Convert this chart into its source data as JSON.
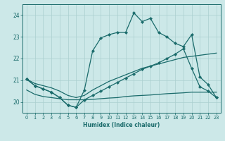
{
  "xlabel": "Humidex (Indice chaleur)",
  "bg_color": "#cce8e8",
  "line_color": "#1a6b6b",
  "grid_color": "#aacfcf",
  "xlim": [
    -0.5,
    23.5
  ],
  "ylim": [
    19.5,
    24.5
  ],
  "yticks": [
    20,
    21,
    22,
    23,
    24
  ],
  "xticks": [
    0,
    1,
    2,
    3,
    4,
    5,
    6,
    7,
    8,
    9,
    10,
    11,
    12,
    13,
    14,
    15,
    16,
    17,
    18,
    19,
    20,
    21,
    22,
    23
  ],
  "series": [
    {
      "x": [
        0,
        1,
        2,
        3,
        4,
        5,
        6,
        7,
        8,
        9,
        10,
        11,
        12,
        13,
        14,
        15,
        16,
        17,
        18,
        19,
        20,
        21,
        22,
        23
      ],
      "y": [
        20.55,
        20.35,
        20.25,
        20.2,
        20.15,
        20.1,
        20.1,
        20.1,
        20.12,
        20.15,
        20.18,
        20.2,
        20.25,
        20.28,
        20.3,
        20.32,
        20.35,
        20.38,
        20.4,
        20.42,
        20.45,
        20.45,
        20.45,
        20.45
      ],
      "marker": false
    },
    {
      "x": [
        0,
        1,
        2,
        3,
        4,
        5,
        6,
        7,
        8,
        9,
        10,
        11,
        12,
        13,
        14,
        15,
        16,
        17,
        18,
        19,
        20,
        21,
        22,
        23
      ],
      "y": [
        21.05,
        20.85,
        20.75,
        20.65,
        20.5,
        20.3,
        20.2,
        20.3,
        20.55,
        20.75,
        20.95,
        21.1,
        21.25,
        21.4,
        21.55,
        21.65,
        21.75,
        21.85,
        21.95,
        22.05,
        22.1,
        22.15,
        22.2,
        22.25
      ],
      "marker": false
    },
    {
      "x": [
        0,
        1,
        2,
        3,
        4,
        5,
        6,
        7,
        8,
        9,
        10,
        11,
        12,
        13,
        14,
        15,
        16,
        17,
        18,
        19,
        20,
        21,
        22,
        23
      ],
      "y": [
        21.05,
        20.75,
        20.6,
        20.45,
        20.2,
        19.85,
        19.75,
        20.55,
        22.35,
        22.95,
        23.1,
        23.2,
        23.2,
        24.1,
        23.7,
        23.85,
        23.2,
        23.0,
        22.7,
        22.55,
        23.1,
        21.15,
        20.8,
        20.2
      ],
      "marker": true
    },
    {
      "x": [
        0,
        1,
        2,
        3,
        4,
        5,
        6,
        7,
        8,
        9,
        10,
        11,
        12,
        13,
        14,
        15,
        16,
        17,
        18,
        19,
        20,
        21,
        22,
        23
      ],
      "y": [
        21.05,
        20.75,
        20.6,
        20.45,
        20.2,
        19.85,
        19.75,
        20.1,
        20.3,
        20.5,
        20.7,
        20.9,
        21.1,
        21.3,
        21.5,
        21.65,
        21.8,
        22.0,
        22.2,
        22.45,
        21.55,
        20.7,
        20.5,
        20.2
      ],
      "marker": true
    }
  ]
}
